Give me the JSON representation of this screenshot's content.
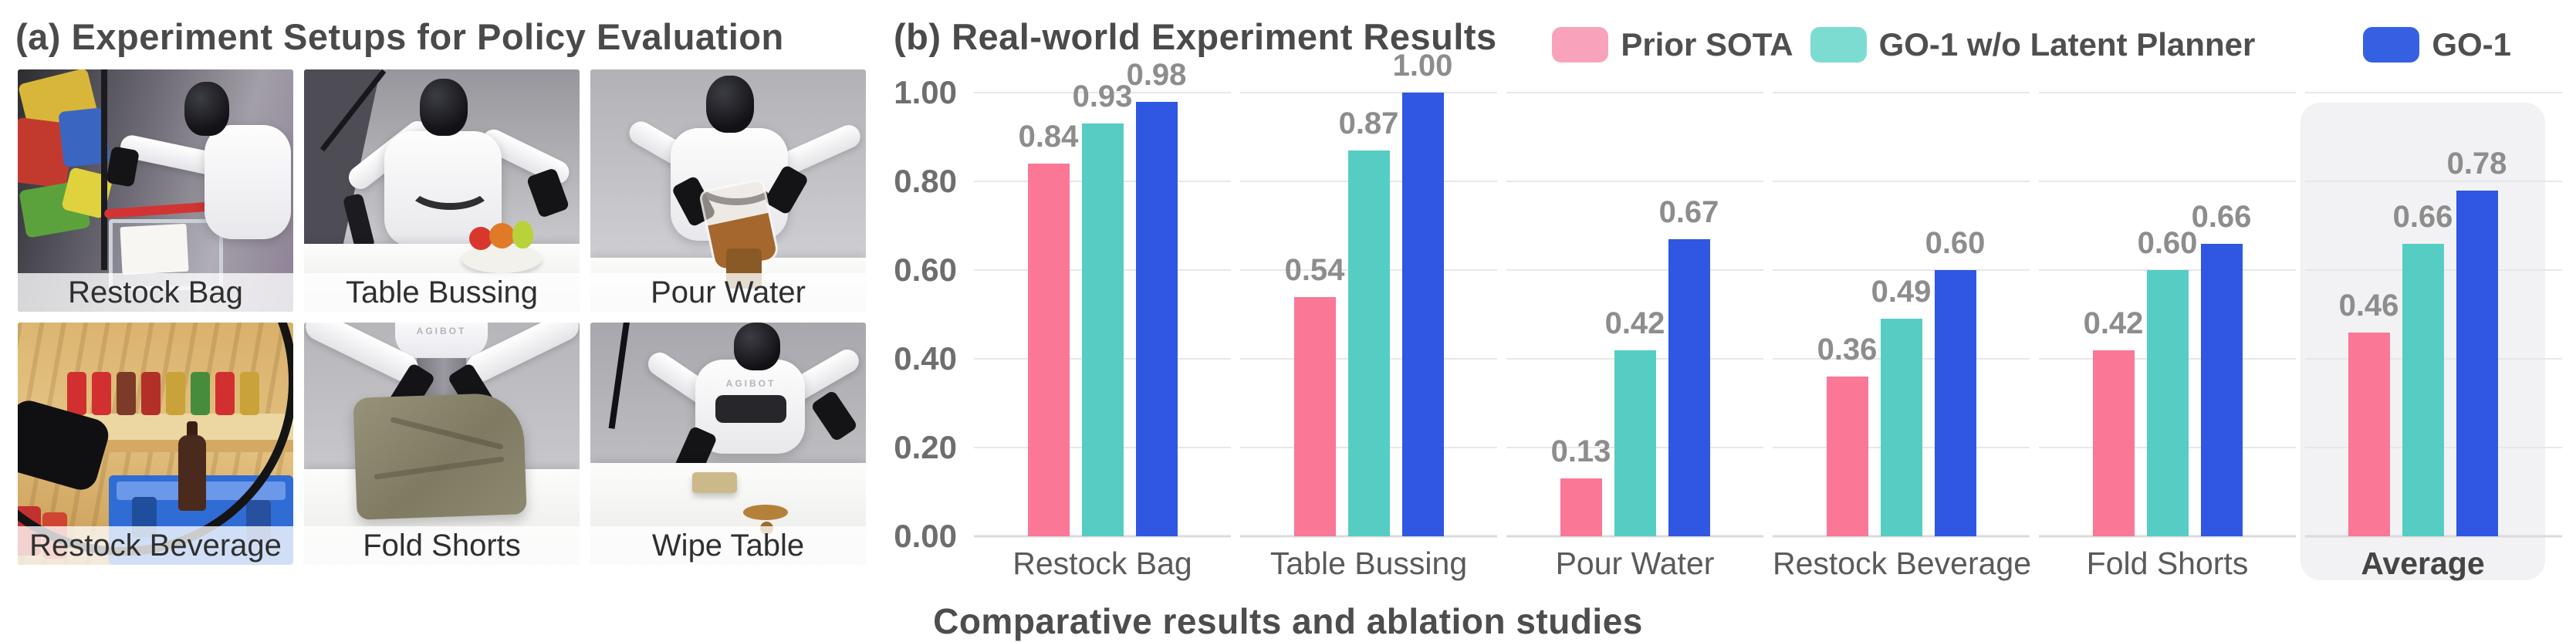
{
  "figure": {
    "caption": "Comparative results and ablation studies"
  },
  "panel_a": {
    "title": "(a) Experiment Setups for Policy Evaluation",
    "robot_brand": "AGIBOT",
    "tiles": [
      {
        "caption": "Restock Bag"
      },
      {
        "caption": "Table Bussing"
      },
      {
        "caption": "Pour Water"
      },
      {
        "caption": "Restock Beverage"
      },
      {
        "caption": "Fold Shorts"
      },
      {
        "caption": "Wipe Table"
      }
    ]
  },
  "panel_b": {
    "title": "(b) Real-world Experiment Results",
    "legend": [
      {
        "label": "Prior SOTA",
        "swatch_color": "#F9A2BB"
      },
      {
        "label": "GO-1 w/o Latent Planner",
        "swatch_color": "#7CDCD2"
      },
      {
        "label": "GO-1",
        "swatch_color": "#3560E2"
      }
    ]
  },
  "chart_data": {
    "type": "bar",
    "title": "(b) Real-world Experiment Results",
    "categories": [
      "Restock Bag",
      "Table Bussing",
      "Pour Water",
      "Restock Beverage",
      "Fold Shorts",
      "Average"
    ],
    "series": [
      {
        "name": "Prior SOTA",
        "color": "#FA7795",
        "values": [
          0.84,
          0.54,
          0.13,
          0.36,
          0.42,
          0.46
        ]
      },
      {
        "name": "GO-1 w/o Latent Planner",
        "color": "#56CDC3",
        "values": [
          0.93,
          0.87,
          0.42,
          0.49,
          0.6,
          0.66
        ]
      },
      {
        "name": "GO-1",
        "color": "#2F57E2",
        "values": [
          0.98,
          1.0,
          0.67,
          0.6,
          0.66,
          0.78
        ]
      }
    ],
    "ylabel": "",
    "xlabel": "",
    "ylim": [
      0.0,
      1.0
    ],
    "yticks": [
      "1.00",
      "0.80",
      "0.60",
      "0.40",
      "0.20",
      "0.00"
    ],
    "grid": true,
    "legend_position": "top-right",
    "highlight_category": "Average",
    "value_labels": "on-top, two decimals"
  }
}
